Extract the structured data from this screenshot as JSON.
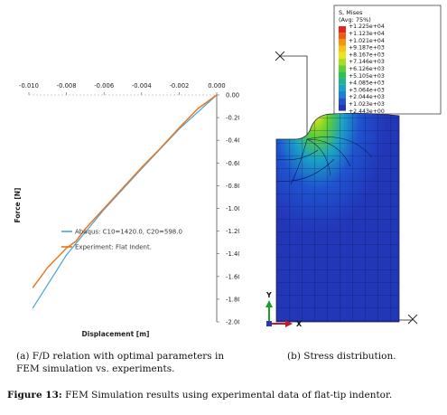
{
  "figure": {
    "label": "Figure 13:",
    "caption": "FEM Simulation results using experimental data of flat-tip indentor."
  },
  "subfig_a": {
    "line1": "(a)  F/D relation with optimal parameters in",
    "line2": "FEM simulation vs. experiments."
  },
  "subfig_b": {
    "caption": "(b) Stress distribution."
  },
  "chart_data": {
    "type": "line",
    "title": "",
    "xlabel": "Displacement [m]",
    "ylabel": "Force [N]",
    "xlim": [
      -0.01,
      0.0
    ],
    "ylim": [
      -2.0,
      0.0
    ],
    "x_ticks": [
      "-0.010",
      "-0.008",
      "-0.006",
      "-0.004",
      "-0.002",
      "0.000"
    ],
    "y_ticks": [
      "0.00",
      "-0.20",
      "-0.40",
      "-0.60",
      "-0.80",
      "-1.00",
      "-1.20",
      "-1.40",
      "-1.60",
      "-1.80",
      "-2.00"
    ],
    "legend_position": "lower-left",
    "series": [
      {
        "name": "Abaqus: C10=1420.0, C20=598.0",
        "color": "#4aa3d8",
        "x": [
          0.0,
          -0.002,
          -0.004,
          -0.006,
          -0.008,
          -0.0098
        ],
        "y": [
          0.0,
          -0.3,
          -0.65,
          -1.01,
          -1.41,
          -1.88
        ]
      },
      {
        "name": "Experiment: Flat Indent.",
        "color": "#e87722",
        "x": [
          0.0,
          -0.001,
          -0.002,
          -0.003,
          -0.004,
          -0.005,
          -0.006,
          -0.007,
          -0.0075,
          -0.008,
          -0.009,
          -0.0098
        ],
        "y": [
          0.0,
          -0.12,
          -0.29,
          -0.47,
          -0.64,
          -0.82,
          -1.0,
          -1.18,
          -1.29,
          -1.35,
          -1.52,
          -1.7
        ]
      }
    ]
  },
  "legend_stress": {
    "title1": "S, Mises",
    "title2": "(Avg: 75%)",
    "values": [
      "+1.225e+04",
      "+1.123e+04",
      "+1.021e+04",
      "+9.187e+03",
      "+8.167e+03",
      "+7.146e+03",
      "+6.126e+03",
      "+5.105e+03",
      "+4.085e+03",
      "+3.064e+03",
      "+2.044e+03",
      "+1.023e+03",
      "+2.443e+00"
    ],
    "colors": [
      "#e8231e",
      "#f05a14",
      "#f7940f",
      "#f8c610",
      "#e8e61a",
      "#a6dc22",
      "#5fcf30",
      "#2cc152",
      "#1fb48f",
      "#1aa2c6",
      "#1c7fd8",
      "#1f53cf",
      "#2236b8"
    ]
  },
  "axes_triad": {
    "y": "Y",
    "x": "X"
  }
}
